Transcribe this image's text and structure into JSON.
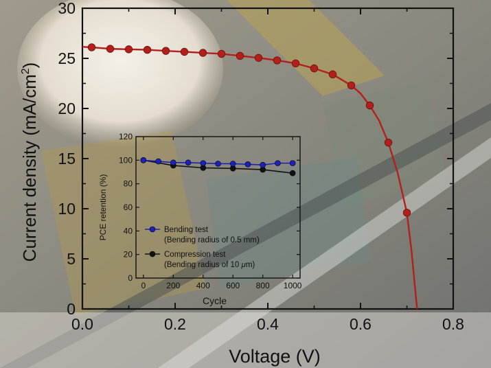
{
  "chart_data": [
    {
      "type": "line",
      "xlabel": "Voltage (V)",
      "ylabel": "Current density (mA/cm",
      "ylabel_sup": "2",
      "ylabel_end": ")",
      "xlim": [
        0.0,
        0.8
      ],
      "ylim": [
        0,
        30
      ],
      "xticks": [
        "0.0",
        "0.2",
        "0.4",
        "0.6",
        "0.8"
      ],
      "yticks": [
        "0",
        "5",
        "10",
        "15",
        "20",
        "25",
        "30"
      ],
      "series": [
        {
          "color": "#b2201c",
          "x": [
            0.02,
            0.06,
            0.1,
            0.14,
            0.18,
            0.22,
            0.26,
            0.3,
            0.34,
            0.38,
            0.42,
            0.46,
            0.5,
            0.54,
            0.58,
            0.62,
            0.66,
            0.7
          ],
          "y": [
            26.1,
            25.95,
            25.9,
            25.85,
            25.75,
            25.65,
            25.55,
            25.45,
            25.25,
            25.05,
            24.8,
            24.5,
            24.0,
            23.4,
            22.3,
            20.3,
            16.6,
            9.6
          ]
        }
      ],
      "curve": {
        "x": [
          0.0,
          0.02,
          0.06,
          0.1,
          0.14,
          0.18,
          0.22,
          0.26,
          0.3,
          0.34,
          0.38,
          0.42,
          0.46,
          0.5,
          0.54,
          0.58,
          0.6,
          0.62,
          0.64,
          0.66,
          0.68,
          0.7,
          0.71,
          0.722
        ],
        "y": [
          26.15,
          26.1,
          25.95,
          25.9,
          25.85,
          25.75,
          25.65,
          25.55,
          25.45,
          25.25,
          25.05,
          24.8,
          24.5,
          24.0,
          23.4,
          22.3,
          21.5,
          20.3,
          18.8,
          16.6,
          13.6,
          9.6,
          5.8,
          0.0
        ]
      }
    },
    {
      "type": "line",
      "xlabel": "Cycle",
      "ylabel": "PCE retention (%)",
      "xlim": [
        -50,
        1050
      ],
      "ylim": [
        0,
        120
      ],
      "xticks": [
        "0",
        "200",
        "400",
        "600",
        "800",
        "1000"
      ],
      "yticks": [
        "0",
        "20",
        "40",
        "60",
        "80",
        "100",
        "120"
      ],
      "legend_position": "bottom-left",
      "series": [
        {
          "name": "Bending test",
          "name_sub": "(Bending radius of 0.5 mm)",
          "color": "#1c22b8",
          "x": [
            0,
            100,
            200,
            300,
            400,
            500,
            600,
            700,
            800,
            900,
            1000
          ],
          "y": [
            100,
            99,
            98,
            98,
            97.5,
            97,
            97,
            96.5,
            96,
            97.5,
            97.5
          ]
        },
        {
          "name": "Compression test",
          "name_sub_prefix": "(Bending radius of 10 ",
          "name_sub_mu": "μ",
          "name_sub_suffix": "m)",
          "color": "#111111",
          "x": [
            0,
            200,
            400,
            600,
            800,
            1000
          ],
          "y": [
            100,
            95.5,
            93.5,
            93,
            92,
            89
          ]
        }
      ]
    }
  ]
}
